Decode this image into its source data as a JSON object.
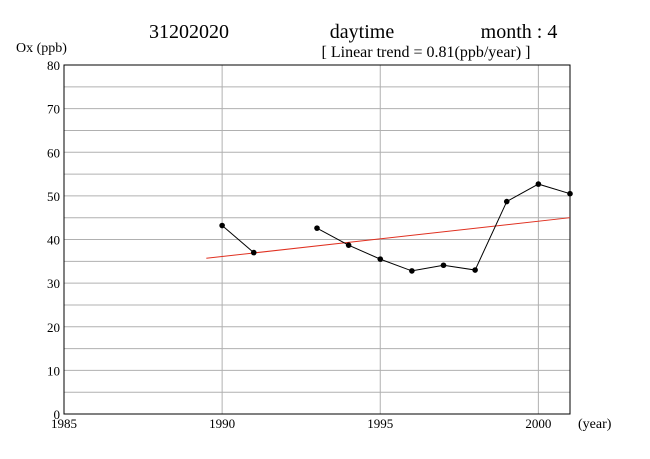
{
  "header": {
    "station": "31202020",
    "period": "daytime",
    "month_label": "month : 4",
    "trend_text": "[ Linear trend = 0.81(ppb/year) ]"
  },
  "chart_data": {
    "type": "line",
    "ylabel": "Ox (ppb)",
    "xlabel": "(year)",
    "xlim": [
      1985,
      2001
    ],
    "ylim": [
      0,
      80
    ],
    "x_ticks": [
      1985,
      1990,
      1995,
      2000
    ],
    "y_ticks": [
      0,
      10,
      20,
      30,
      40,
      50,
      60,
      70,
      80
    ],
    "grid": true,
    "series": [
      {
        "segments": [
          [
            {
              "x": 1990,
              "y": 43.2
            },
            {
              "x": 1991,
              "y": 37.0
            }
          ],
          [
            {
              "x": 1993,
              "y": 42.6
            },
            {
              "x": 1994,
              "y": 38.7
            },
            {
              "x": 1995,
              "y": 35.5
            },
            {
              "x": 1996,
              "y": 32.8
            },
            {
              "x": 1997,
              "y": 34.1
            },
            {
              "x": 1998,
              "y": 33.0
            },
            {
              "x": 1999,
              "y": 48.7
            },
            {
              "x": 2000,
              "y": 52.7
            },
            {
              "x": 2001,
              "y": 50.5
            }
          ]
        ],
        "color": "#000000"
      }
    ],
    "trend": {
      "slope": 0.81,
      "x": [
        1989.5,
        2001
      ],
      "y": [
        35.7,
        45.0
      ],
      "color": "#e03020"
    }
  }
}
